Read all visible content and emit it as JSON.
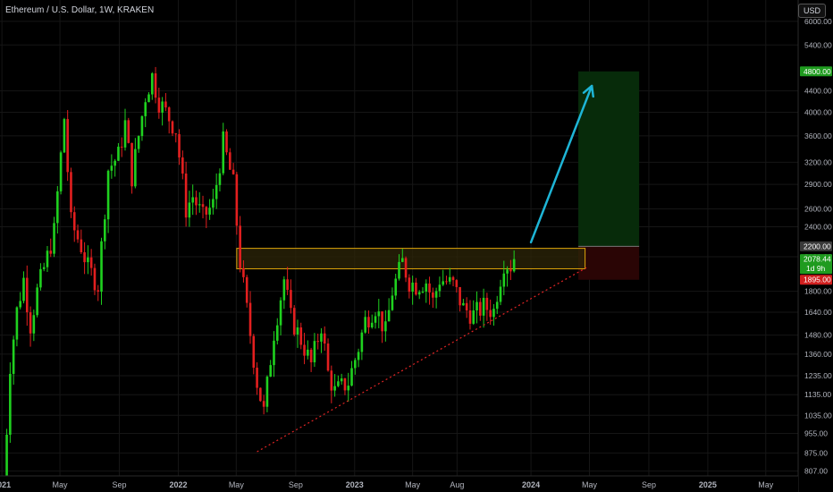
{
  "header": {
    "title": "Ethereum / U.S. Dollar, 1W, KRAKEN",
    "currency": "USD"
  },
  "colors": {
    "background": "#000000",
    "grid": "#161616",
    "up": "#1fd11f",
    "down": "#e31f1f",
    "zone_border": "#e0a70b",
    "zone_fill": "#2d2608",
    "target_fill": "#072b0a",
    "stop_fill": "#2a0505",
    "arrow": "#1eb5d6",
    "trendline": "#e02424",
    "axis_text": "#b2b5be",
    "label_green": "#1f9b1f",
    "label_red": "#d11f1f"
  },
  "chart_data": {
    "type": "candlestick",
    "title": "Ethereum / U.S. Dollar, 1W, KRAKEN",
    "y_scale": "log",
    "ylim": [
      790,
      6600
    ],
    "x_range": [
      "2020-12-28",
      "2025-07-07"
    ],
    "y_ticks": [
      807,
      875,
      955,
      1035,
      1135,
      1235,
      1360,
      1480,
      1640,
      1800,
      2100,
      2400,
      2600,
      2900,
      3200,
      3600,
      4000,
      4400,
      5400,
      6000
    ],
    "y_tick_labels": [
      "807.00",
      "875.00",
      "955.00",
      "1035.00",
      "1135.00",
      "1235.00",
      "1360.00",
      "1480.00",
      "1640.00",
      "1800.00",
      "2100.00",
      "2400.00",
      "2600.00",
      "2900.00",
      "3200.00",
      "3600.00",
      "4000.00",
      "4400.00",
      "5400.00",
      "6000.00"
    ],
    "price_labels": [
      {
        "text": "4800.00",
        "value": 4800,
        "style": "green"
      },
      {
        "text": "2200.00",
        "value": 2200,
        "style": "gray"
      },
      {
        "text": "2078.44",
        "sub": "1d 9h",
        "value": 2078.44,
        "style": "green"
      },
      {
        "text": "1895.00",
        "value": 1895,
        "style": "red"
      }
    ],
    "x_ticks": [
      {
        "label": "2021",
        "date": "2021-01-01"
      },
      {
        "label": "May",
        "date": "2021-05-01"
      },
      {
        "label": "Sep",
        "date": "2021-09-01"
      },
      {
        "label": "2022",
        "date": "2022-01-01"
      },
      {
        "label": "May",
        "date": "2022-05-01"
      },
      {
        "label": "Sep",
        "date": "2022-09-01"
      },
      {
        "label": "2023",
        "date": "2023-01-01"
      },
      {
        "label": "May",
        "date": "2023-05-01"
      },
      {
        "label": "Aug",
        "date": "2023-08-01"
      },
      {
        "label": "2024",
        "date": "2024-01-01"
      },
      {
        "label": "May",
        "date": "2024-05-01"
      },
      {
        "label": "Sep",
        "date": "2024-09-01"
      },
      {
        "label": "2025",
        "date": "2025-01-01"
      },
      {
        "label": "May",
        "date": "2025-05-01"
      }
    ],
    "close_path": [
      [
        "2021-01-04",
        730
      ],
      [
        "2021-01-18",
        1300
      ],
      [
        "2021-02-01",
        1650
      ],
      [
        "2021-02-15",
        1900
      ],
      [
        "2021-03-01",
        1550
      ],
      [
        "2021-03-15",
        1800
      ],
      [
        "2021-04-05",
        2100
      ],
      [
        "2021-04-19",
        2350
      ],
      [
        "2021-05-10",
        3900
      ],
      [
        "2021-05-24",
        2450
      ],
      [
        "2021-06-14",
        2200
      ],
      [
        "2021-06-28",
        2000
      ],
      [
        "2021-07-19",
        1850
      ],
      [
        "2021-08-09",
        3100
      ],
      [
        "2021-08-30",
        3300
      ],
      [
        "2021-09-13",
        3800
      ],
      [
        "2021-09-27",
        3000
      ],
      [
        "2021-10-11",
        3600
      ],
      [
        "2021-10-25",
        4300
      ],
      [
        "2021-11-08",
        4700
      ],
      [
        "2021-11-22",
        4200
      ],
      [
        "2021-12-06",
        4000
      ],
      [
        "2021-12-27",
        3700
      ],
      [
        "2022-01-17",
        2600
      ],
      [
        "2022-01-31",
        2750
      ],
      [
        "2022-02-21",
        2500
      ],
      [
        "2022-03-14",
        2650
      ],
      [
        "2022-04-04",
        3500
      ],
      [
        "2022-04-25",
        2900
      ],
      [
        "2022-05-09",
        2050
      ],
      [
        "2022-06-13",
        1200
      ],
      [
        "2022-06-27",
        1050
      ],
      [
        "2022-07-18",
        1500
      ],
      [
        "2022-08-08",
        1900
      ],
      [
        "2022-08-22",
        1600
      ],
      [
        "2022-09-12",
        1450
      ],
      [
        "2022-10-03",
        1300
      ],
      [
        "2022-10-24",
        1550
      ],
      [
        "2022-11-07",
        1250
      ],
      [
        "2022-11-21",
        1150
      ],
      [
        "2022-12-19",
        1200
      ],
      [
        "2023-01-09",
        1400
      ],
      [
        "2023-01-23",
        1580
      ],
      [
        "2023-02-13",
        1680
      ],
      [
        "2023-03-06",
        1500
      ],
      [
        "2023-03-20",
        1800
      ],
      [
        "2023-04-10",
        2050
      ],
      [
        "2023-04-24",
        1880
      ],
      [
        "2023-05-08",
        1850
      ],
      [
        "2023-05-29",
        1880
      ],
      [
        "2023-06-12",
        1720
      ],
      [
        "2023-06-26",
        1900
      ],
      [
        "2023-07-10",
        1880
      ],
      [
        "2023-07-24",
        1850
      ],
      [
        "2023-08-14",
        1670
      ],
      [
        "2023-09-04",
        1620
      ],
      [
        "2023-09-25",
        1680
      ],
      [
        "2023-10-16",
        1650
      ],
      [
        "2023-10-23",
        1790
      ],
      [
        "2023-11-06",
        2050
      ],
      [
        "2023-11-20",
        2020
      ],
      [
        "2023-11-27",
        2078
      ]
    ],
    "annotations": {
      "resistance_zone": {
        "from": "2022-05-02",
        "to": "2024-04-22",
        "low": 1990,
        "high": 2180
      },
      "trendline": {
        "from": [
          "2022-06-13",
          880
        ],
        "to": [
          "2024-04-29",
          2010
        ]
      },
      "long_position": {
        "from": "2024-04-08",
        "to": "2024-08-12",
        "entry": 2200,
        "target": 4800,
        "stop": 1895
      },
      "arrow": {
        "from": [
          "2024-01-01",
          2240
        ],
        "to": [
          "2024-05-06",
          4500
        ]
      }
    }
  }
}
